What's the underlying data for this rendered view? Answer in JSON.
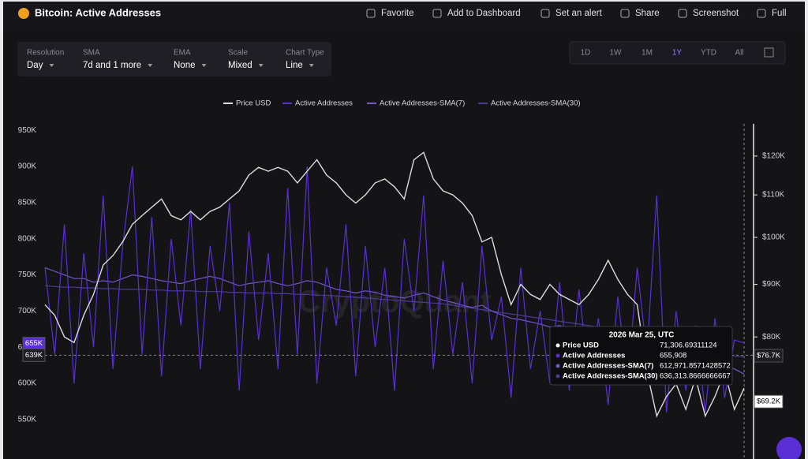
{
  "header": {
    "title": "Bitcoin: Active Addresses",
    "actions": [
      "Favorite",
      "Add to Dashboard",
      "Set an alert",
      "Share",
      "Screenshot",
      "Full"
    ]
  },
  "controls": [
    {
      "label": "Resolution",
      "value": "Day"
    },
    {
      "label": "SMA",
      "value": "7d and 1 more"
    },
    {
      "label": "EMA",
      "value": "None"
    },
    {
      "label": "Scale",
      "value": "Mixed"
    },
    {
      "label": "Chart Type",
      "value": "Line"
    }
  ],
  "ranges": [
    "1D",
    "1W",
    "1M",
    "1Y",
    "YTD",
    "All"
  ],
  "active_range": 3,
  "watermark": "CryptoQuant",
  "chart_data": {
    "type": "line",
    "grid": false,
    "y2scale": "log",
    "ylim": [
      503000,
      959000
    ],
    "yticks": [
      {
        "value": 550000,
        "label": "550K"
      },
      {
        "value": 600000,
        "label": "600K"
      },
      {
        "value": 650000,
        "label": "650K"
      },
      {
        "value": 700000,
        "label": "700K"
      },
      {
        "value": 750000,
        "label": "750K"
      },
      {
        "value": 800000,
        "label": "800K"
      },
      {
        "value": 850000,
        "label": "850K"
      },
      {
        "value": 900000,
        "label": "900K"
      },
      {
        "value": 950000,
        "label": "950K"
      }
    ],
    "y2lim": [
      61600,
      129000
    ],
    "y2ticks": [
      {
        "value": 80000,
        "label": "$80K"
      },
      {
        "value": 90000,
        "label": "$90K"
      },
      {
        "value": 100000,
        "label": "$100K"
      },
      {
        "value": 110000,
        "label": "$110K"
      },
      {
        "value": 120000,
        "label": "$120K"
      }
    ],
    "series": [
      {
        "name": "Price USD",
        "color": "#dcdcdc",
        "axis": "y2",
        "values": [
          86000,
          84000,
          80000,
          79000,
          84000,
          88000,
          94000,
          96000,
          99000,
          103000,
          105000,
          107000,
          109000,
          105000,
          104000,
          106000,
          104000,
          106000,
          107000,
          109000,
          111000,
          115000,
          117000,
          116000,
          117000,
          116000,
          113000,
          116000,
          119000,
          115000,
          113000,
          110000,
          108000,
          110000,
          113000,
          114000,
          112000,
          109000,
          119000,
          121000,
          114000,
          111000,
          110000,
          108000,
          105000,
          99000,
          100000,
          92000,
          86000,
          90000,
          88000,
          87000,
          90000,
          88000,
          87000,
          86000,
          88000,
          91000,
          95000,
          91000,
          88000,
          86000,
          74000,
          67000,
          70000,
          72000,
          68000,
          73000,
          67000,
          70000,
          74000,
          68000,
          71306.69311124
        ]
      },
      {
        "name": "Active Addresses",
        "color": "#5a2fd6",
        "values": [
          760000,
          640000,
          820000,
          600000,
          780000,
          650000,
          860000,
          620000,
          790000,
          900000,
          640000,
          830000,
          610000,
          800000,
          680000,
          840000,
          620000,
          790000,
          700000,
          850000,
          590000,
          810000,
          660000,
          780000,
          620000,
          870000,
          640000,
          900000,
          600000,
          760000,
          680000,
          820000,
          610000,
          790000,
          650000,
          760000,
          590000,
          800000,
          700000,
          860000,
          620000,
          770000,
          640000,
          740000,
          600000,
          790000,
          660000,
          720000,
          580000,
          760000,
          620000,
          700000,
          600000,
          740000,
          590000,
          730000,
          610000,
          690000,
          570000,
          720000,
          600000,
          760000,
          640000,
          860000,
          560000,
          700000,
          590000,
          680000,
          560000,
          690000,
          580000,
          660000,
          655908
        ]
      },
      {
        "name": "Active Addresses-SMA(7)",
        "color": "#7457c9",
        "values": [
          760000,
          755000,
          750000,
          745000,
          745000,
          740000,
          742000,
          740000,
          745000,
          750000,
          748000,
          745000,
          742000,
          740000,
          738000,
          742000,
          745000,
          748000,
          745000,
          740000,
          735000,
          738000,
          740000,
          742000,
          738000,
          735000,
          738000,
          742000,
          740000,
          735000,
          730000,
          728000,
          725000,
          728000,
          726000,
          722000,
          720000,
          718000,
          722000,
          725000,
          720000,
          715000,
          712000,
          708000,
          705000,
          708000,
          700000,
          695000,
          690000,
          688000,
          685000,
          682000,
          678000,
          680000,
          675000,
          670000,
          672000,
          668000,
          665000,
          660000,
          662000,
          665000,
          668000,
          672000,
          660000,
          650000,
          645000,
          640000,
          635000,
          630000,
          625000,
          620000,
          612971.8571428572
        ]
      },
      {
        "name": "Active Addresses-SMA(30)",
        "color": "#4b3a94",
        "values": [
          735000,
          734000,
          733000,
          733000,
          732000,
          732000,
          731000,
          731000,
          730000,
          730000,
          730000,
          729000,
          729000,
          728000,
          728000,
          728000,
          727000,
          727000,
          727000,
          726000,
          726000,
          725000,
          725000,
          725000,
          724000,
          724000,
          723000,
          723000,
          722000,
          722000,
          721000,
          720000,
          719000,
          718000,
          717000,
          716000,
          715000,
          714000,
          713000,
          712000,
          711000,
          710000,
          708000,
          706000,
          704000,
          702000,
          700000,
          698000,
          696000,
          694000,
          692000,
          690000,
          688000,
          686000,
          684000,
          682000,
          680000,
          678000,
          676000,
          674000,
          672000,
          670000,
          668000,
          666000,
          664000,
          660000,
          656000,
          652000,
          648000,
          644000,
          640000,
          638000,
          636313.8666666667
        ]
      }
    ],
    "markers": [
      {
        "value": 655000,
        "label": "655K",
        "axis": "y"
      },
      {
        "value": 639000,
        "label": "639K",
        "axis": "y"
      },
      {
        "value": 76700,
        "label": "$76.7K",
        "axis": "y2"
      },
      {
        "value": 69200,
        "label": "$69.2K",
        "axis": "y2"
      }
    ],
    "tooltip": {
      "title": "2026 Mar 25, UTC",
      "rows": [
        {
          "name": "Price USD",
          "value": "71,306.69311124"
        },
        {
          "name": "Active Addresses",
          "value": "655,908"
        },
        {
          "name": "Active Addresses-SMA(7)",
          "value": "612,971.8571428572"
        },
        {
          "name": "Active Addresses-SMA(30)",
          "value": "636,313.8666666667"
        }
      ]
    }
  }
}
